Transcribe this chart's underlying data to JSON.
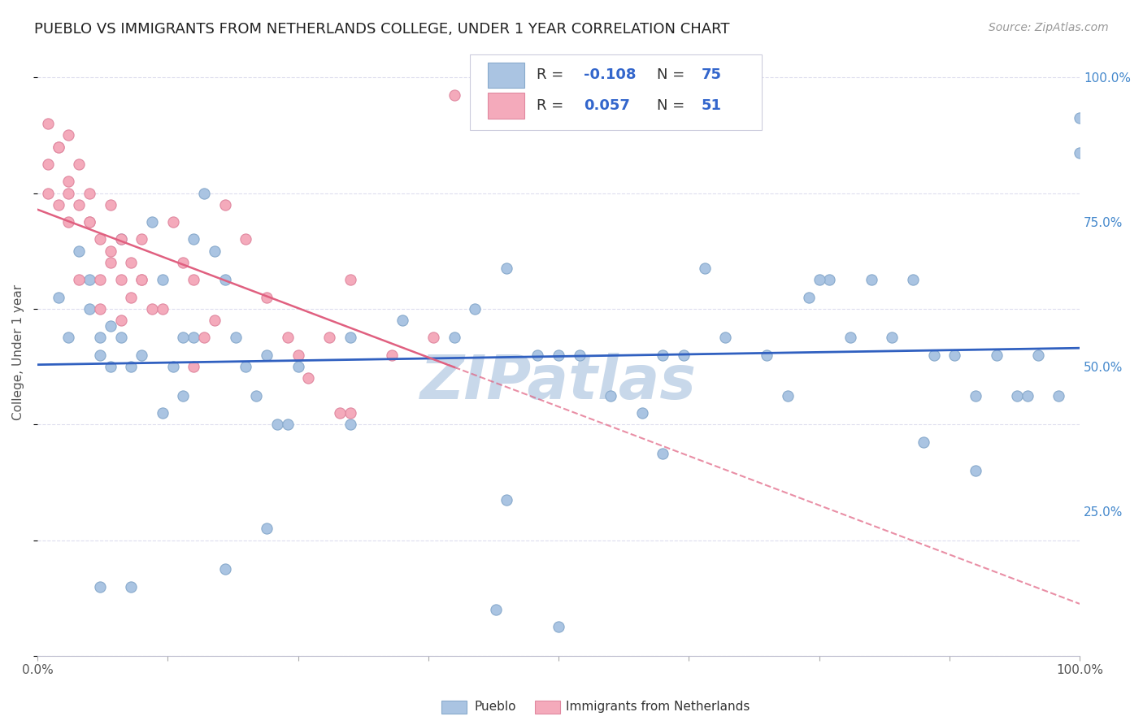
{
  "title": "PUEBLO VS IMMIGRANTS FROM NETHERLANDS COLLEGE, UNDER 1 YEAR CORRELATION CHART",
  "source": "Source: ZipAtlas.com",
  "ylabel": "College, Under 1 year",
  "ytick_labels_right": [
    "25.0%",
    "50.0%",
    "75.0%",
    "100.0%"
  ],
  "ytick_values": [
    0.25,
    0.5,
    0.75,
    1.0
  ],
  "xlim": [
    0,
    1
  ],
  "ylim": [
    0,
    1.05
  ],
  "legend_R_blue": "-0.108",
  "legend_N_blue": "75",
  "legend_R_pink": "0.057",
  "legend_N_pink": "51",
  "blue_color": "#aac4e2",
  "pink_color": "#f4aabb",
  "blue_scatter_edge": "#88aacc",
  "pink_scatter_edge": "#e088a0",
  "blue_line_color": "#3060c0",
  "pink_line_color": "#e06080",
  "watermark": "ZIPatlas",
  "watermark_color": "#c8d8ea",
  "grid_color": "#ddddee",
  "background_color": "#ffffff",
  "legend_value_color": "#3366cc",
  "blue_scatter_x": [
    0.02,
    0.03,
    0.04,
    0.05,
    0.05,
    0.06,
    0.06,
    0.07,
    0.07,
    0.08,
    0.08,
    0.09,
    0.1,
    0.11,
    0.12,
    0.13,
    0.14,
    0.15,
    0.15,
    0.16,
    0.17,
    0.18,
    0.19,
    0.2,
    0.21,
    0.22,
    0.23,
    0.24,
    0.25,
    0.3,
    0.35,
    0.4,
    0.42,
    0.45,
    0.48,
    0.5,
    0.52,
    0.55,
    0.58,
    0.6,
    0.62,
    0.64,
    0.66,
    0.7,
    0.72,
    0.74,
    0.76,
    0.78,
    0.8,
    0.82,
    0.84,
    0.86,
    0.88,
    0.9,
    0.92,
    0.94,
    0.96,
    0.98,
    1.0,
    1.0,
    0.06,
    0.09,
    0.12,
    0.14,
    0.18,
    0.22,
    0.3,
    0.45,
    0.6,
    0.75,
    0.85,
    0.9,
    0.95,
    0.44,
    0.5
  ],
  "blue_scatter_y": [
    0.62,
    0.55,
    0.7,
    0.65,
    0.6,
    0.52,
    0.55,
    0.57,
    0.5,
    0.72,
    0.55,
    0.5,
    0.52,
    0.75,
    0.65,
    0.5,
    0.45,
    0.72,
    0.55,
    0.8,
    0.7,
    0.65,
    0.55,
    0.5,
    0.45,
    0.52,
    0.4,
    0.4,
    0.5,
    0.55,
    0.58,
    0.55,
    0.6,
    0.67,
    0.52,
    0.52,
    0.52,
    0.45,
    0.42,
    0.52,
    0.52,
    0.67,
    0.55,
    0.52,
    0.45,
    0.62,
    0.65,
    0.55,
    0.65,
    0.55,
    0.65,
    0.52,
    0.52,
    0.45,
    0.52,
    0.45,
    0.52,
    0.45,
    0.93,
    0.87,
    0.12,
    0.12,
    0.42,
    0.55,
    0.15,
    0.22,
    0.4,
    0.27,
    0.35,
    0.65,
    0.37,
    0.32,
    0.45,
    0.08,
    0.05
  ],
  "pink_scatter_x": [
    0.01,
    0.01,
    0.02,
    0.02,
    0.03,
    0.03,
    0.03,
    0.04,
    0.04,
    0.05,
    0.05,
    0.06,
    0.06,
    0.07,
    0.07,
    0.08,
    0.08,
    0.09,
    0.09,
    0.1,
    0.1,
    0.11,
    0.12,
    0.13,
    0.14,
    0.15,
    0.16,
    0.17,
    0.18,
    0.2,
    0.22,
    0.24,
    0.26,
    0.28,
    0.3,
    0.34,
    0.38,
    0.15,
    0.08,
    0.06,
    0.05,
    0.04,
    0.03,
    0.02,
    0.01,
    0.07,
    0.1,
    0.29,
    0.3,
    0.25,
    0.4
  ],
  "pink_scatter_y": [
    0.85,
    0.8,
    0.88,
    0.78,
    0.9,
    0.82,
    0.75,
    0.85,
    0.78,
    0.8,
    0.75,
    0.72,
    0.65,
    0.78,
    0.7,
    0.72,
    0.65,
    0.68,
    0.62,
    0.72,
    0.65,
    0.6,
    0.6,
    0.75,
    0.68,
    0.65,
    0.55,
    0.58,
    0.78,
    0.72,
    0.62,
    0.55,
    0.48,
    0.55,
    0.42,
    0.52,
    0.55,
    0.5,
    0.58,
    0.6,
    0.75,
    0.65,
    0.8,
    0.88,
    0.92,
    0.68,
    0.65,
    0.42,
    0.65,
    0.52,
    0.97
  ]
}
